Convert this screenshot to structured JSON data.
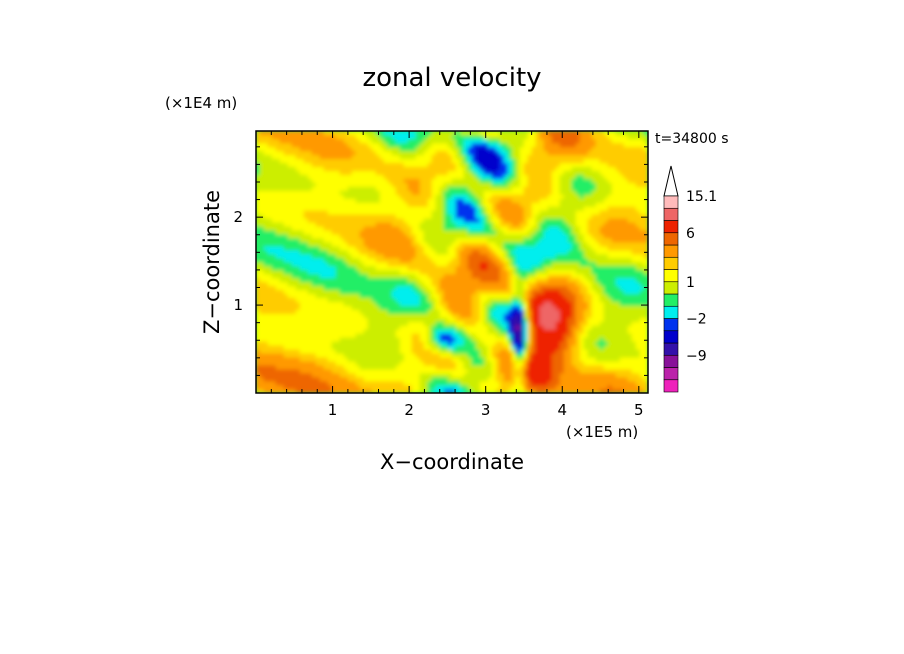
{
  "chart_data": {
    "type": "heatmap",
    "title": "zonal velocity",
    "xlabel": "X−coordinate",
    "ylabel": "Z−coordinate",
    "x_unit": "(×1E5 m)",
    "y_unit": "(×1E4 m)",
    "time_label": "t=34800 s",
    "xlim": [
      0,
      5.12
    ],
    "ylim": [
      0,
      2.98
    ],
    "x_ticks": [
      {
        "value": 1,
        "label": "1"
      },
      {
        "value": 2,
        "label": "2"
      },
      {
        "value": 3,
        "label": "3"
      },
      {
        "value": 4,
        "label": "4"
      },
      {
        "value": 5,
        "label": "5"
      }
    ],
    "y_ticks": [
      {
        "value": 1,
        "label": "1"
      },
      {
        "value": 2,
        "label": "2"
      }
    ],
    "colorbar": {
      "levels": [
        {
          "color": "#ee22bb",
          "label": ""
        },
        {
          "color": "#bb22aa",
          "label": ""
        },
        {
          "color": "#881199",
          "label": "−9"
        },
        {
          "color": "#3311aa",
          "label": ""
        },
        {
          "color": "#0000cc",
          "label": ""
        },
        {
          "color": "#0033ee",
          "label": "−2"
        },
        {
          "color": "#00eeee",
          "label": ""
        },
        {
          "color": "#22ee66",
          "label": ""
        },
        {
          "color": "#ccee00",
          "label": "1"
        },
        {
          "color": "#ffff00",
          "label": ""
        },
        {
          "color": "#ffcc00",
          "label": ""
        },
        {
          "color": "#ff9900",
          "label": ""
        },
        {
          "color": "#ee6600",
          "label": "6"
        },
        {
          "color": "#ee2200",
          "label": ""
        },
        {
          "color": "#ee6666",
          "label": ""
        },
        {
          "color": "#ffbbbb",
          "label": "15.1"
        }
      ]
    }
  }
}
